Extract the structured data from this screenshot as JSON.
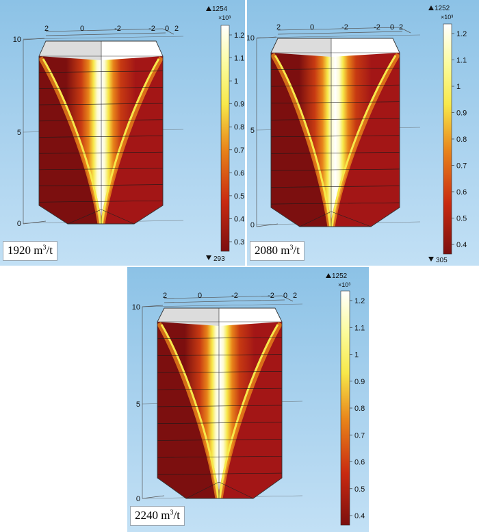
{
  "colors": {
    "sky_top": "#8cc2e6",
    "sky_bottom": "#c2e0f5",
    "plume_white": "#ffffff",
    "plume_yellow": "#f7e84a",
    "plume_orange": "#e8841a",
    "body_dark_red": "#7c0f0f",
    "body_red": "#a31616",
    "label_border": "#9aa7b2"
  },
  "panels": [
    {
      "id": "p1920",
      "case_value": "1920",
      "case_unit_base": "m",
      "case_unit_exp": "3",
      "case_unit_tail": "/t",
      "colorbar": {
        "max_marker": "1254",
        "min_marker": "293",
        "multiplier": "×10³",
        "ticks": [
          "1.2",
          "1.1",
          "1",
          "0.9",
          "0.8",
          "0.7",
          "0.6",
          "0.5",
          "0.4",
          "0.3"
        ]
      },
      "axis_top_labels": [
        "2",
        "0",
        "-2",
        "-2",
        "0",
        "2"
      ],
      "axis_side_labels": [
        "10",
        "5",
        "0"
      ]
    },
    {
      "id": "p2080",
      "case_value": "2080",
      "case_unit_base": "m",
      "case_unit_exp": "3",
      "case_unit_tail": "/t",
      "colorbar": {
        "max_marker": "1252",
        "min_marker": "305",
        "multiplier": "×10³",
        "ticks": [
          "1.2",
          "1.1",
          "1",
          "0.9",
          "0.8",
          "0.7",
          "0.6",
          "0.5",
          "0.4"
        ]
      },
      "axis_top_labels": [
        "2",
        "0",
        "-2",
        "-2",
        "0",
        "2"
      ],
      "axis_side_labels": [
        "10",
        "5",
        "0"
      ]
    },
    {
      "id": "p2240",
      "case_value": "2240",
      "case_unit_base": "m",
      "case_unit_exp": "3",
      "case_unit_tail": "/t",
      "colorbar": {
        "max_marker": "1252",
        "min_marker": "",
        "multiplier": "×10³",
        "ticks": [
          "1.2",
          "1.1",
          "1",
          "0.9",
          "0.8",
          "0.7",
          "0.6",
          "0.5",
          "0.4"
        ]
      },
      "axis_top_labels": [
        "2",
        "0",
        "-2",
        "-2",
        "0",
        "2"
      ],
      "axis_side_labels": [
        "10",
        "5",
        "0"
      ]
    }
  ]
}
